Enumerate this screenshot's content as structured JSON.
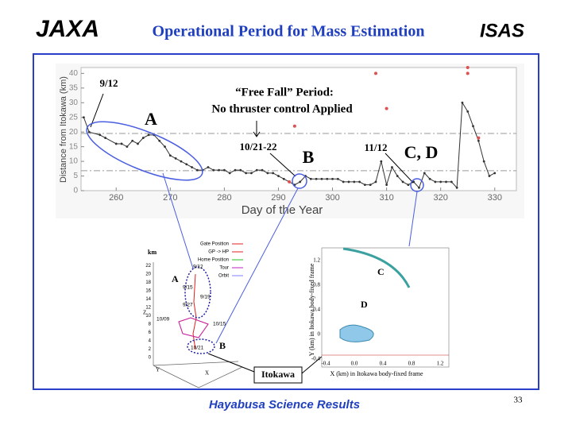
{
  "header": {
    "logo_left": "JAXA",
    "title": "Operational Period for Mass Estimation",
    "logo_right": "ISAS"
  },
  "chart_data": {
    "type": "line",
    "xlabel": "Day of the Year",
    "ylabel": "Distance from Itokawa (km)",
    "xlim": [
      253.5,
      334
    ],
    "ylim": [
      0,
      42
    ],
    "xticks": [
      260,
      270,
      280,
      290,
      300,
      310,
      320,
      330
    ],
    "yticks": [
      0,
      5,
      10,
      15,
      20,
      25,
      30,
      35,
      40
    ],
    "reference_lines": [
      19.5,
      6.8
    ],
    "series": [
      {
        "color": "#333333",
        "x": [
          254,
          255,
          257,
          258,
          260,
          261,
          262,
          263,
          264,
          265,
          266,
          267,
          268,
          269,
          270,
          271,
          272,
          273,
          274,
          275,
          276,
          277,
          278,
          279,
          280,
          281,
          282,
          283,
          284,
          285,
          286,
          287,
          288,
          289,
          290,
          291,
          292,
          293,
          294,
          295,
          296,
          297,
          298,
          299,
          300,
          301,
          302,
          303,
          304,
          305,
          306,
          307,
          308,
          309,
          310,
          311,
          312,
          313,
          314,
          315,
          316,
          317,
          318,
          319,
          320,
          321,
          322,
          323,
          324,
          325,
          326,
          327,
          328,
          329,
          330
        ],
        "values": [
          25,
          20,
          19,
          18,
          16,
          16,
          15,
          17,
          16,
          18,
          19,
          19,
          17,
          15,
          12,
          11,
          10,
          9,
          8,
          7,
          7,
          8,
          7,
          7,
          7,
          6,
          7,
          7,
          6,
          6,
          7,
          7,
          6,
          6,
          5,
          4,
          3,
          2,
          3,
          5,
          4,
          4,
          4,
          4,
          4,
          4,
          3,
          3,
          3,
          3,
          2,
          2,
          3,
          10,
          2,
          8,
          5,
          3,
          2,
          3,
          1,
          6,
          4,
          3,
          3,
          3,
          3,
          1,
          30,
          27,
          22,
          17,
          10,
          5,
          6
        ]
      },
      {
        "color": "#e05050",
        "x": [
          292,
          293,
          308,
          310,
          325,
          325,
          327
        ],
        "values": [
          3,
          22,
          40,
          28,
          42,
          40,
          18
        ]
      }
    ],
    "annotations": [
      "9/12",
      "A",
      "“Free Fall” Period:",
      "No thruster control Applied",
      "10/21-22",
      "B",
      "11/12",
      "C, D"
    ]
  },
  "trajectory_plot": {
    "unit": "km",
    "legend": [
      "Gate Position",
      "GP -> HP",
      "Home Position",
      "Tour",
      "Orbit"
    ],
    "zticks": [
      "0",
      "2",
      "4",
      "6",
      "8",
      "10",
      "12",
      "14",
      "16",
      "18",
      "20",
      "22"
    ],
    "z_axis": "Z",
    "x_axis": "X",
    "y_axis": "Y",
    "dates": [
      "9/12",
      "9/15",
      "9/19",
      "9/27",
      "10/09",
      "10/15",
      "10/21"
    ],
    "labels": [
      "A",
      "B"
    ],
    "target": "Itokawa"
  },
  "orbit_plot": {
    "labels": [
      "C",
      "D"
    ],
    "xlabel": "X (km) in Itokawa body-fixed frame",
    "ylabel": "Y (km) in Itokawa body-fixed frame",
    "xticks": [
      "-0.4",
      "0.0",
      "0.4",
      "0.8",
      "1.2"
    ],
    "yticks": [
      "1.2",
      "0.8",
      "0.4",
      "0",
      "-0.4"
    ]
  },
  "footer": {
    "text": "Hayabusa Science Results",
    "page": "33"
  }
}
